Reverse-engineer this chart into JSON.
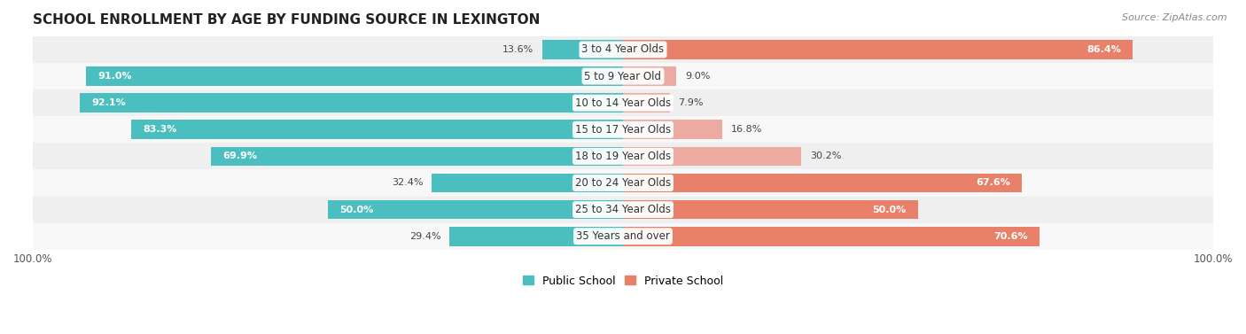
{
  "title": "SCHOOL ENROLLMENT BY AGE BY FUNDING SOURCE IN LEXINGTON",
  "source": "Source: ZipAtlas.com",
  "categories": [
    "3 to 4 Year Olds",
    "5 to 9 Year Old",
    "10 to 14 Year Olds",
    "15 to 17 Year Olds",
    "18 to 19 Year Olds",
    "20 to 24 Year Olds",
    "25 to 34 Year Olds",
    "35 Years and over"
  ],
  "public_school": [
    13.6,
    91.0,
    92.1,
    83.3,
    69.9,
    32.4,
    50.0,
    29.4
  ],
  "private_school": [
    86.4,
    9.0,
    7.9,
    16.8,
    30.2,
    67.6,
    50.0,
    70.6
  ],
  "public_color": "#4BBFBF",
  "private_color_strong": "#E8806A",
  "private_color_light": "#EDAAA0",
  "bar_bg_odd": "#EFEFEF",
  "bar_bg_even": "#F8F8F8",
  "title_fontsize": 11,
  "label_fontsize": 8.5,
  "value_fontsize": 8,
  "legend_fontsize": 9,
  "source_fontsize": 8
}
